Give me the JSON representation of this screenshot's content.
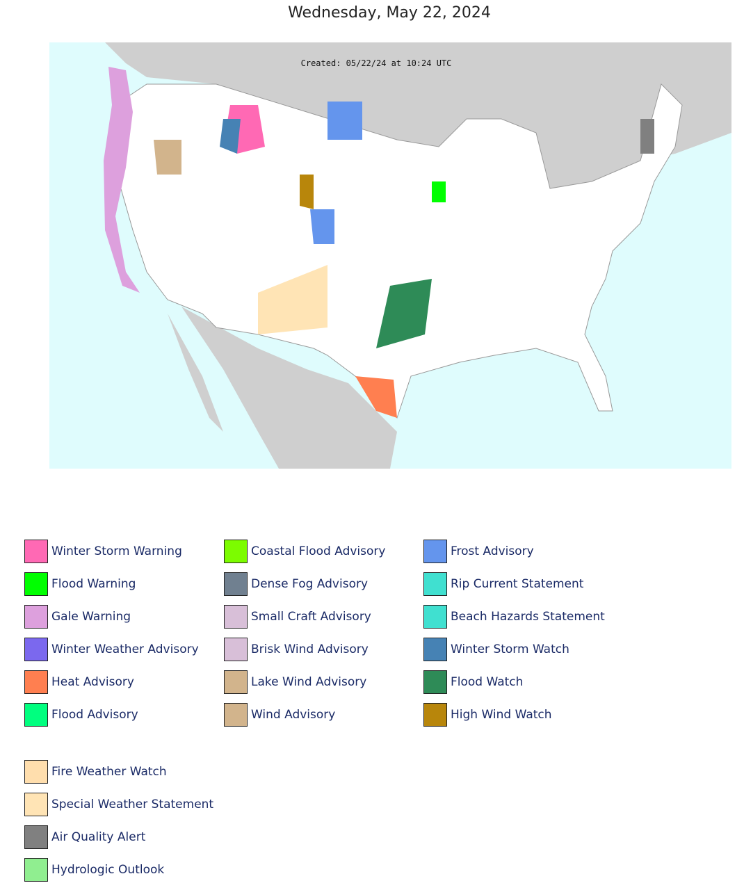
{
  "header": {
    "title": "Wednesday, May 22, 2024"
  },
  "map": {
    "created": "Created: 05/22/24 at 10:24 UTC"
  },
  "legend": {
    "columns": [
      [
        {
          "label": "Winter Storm Warning",
          "color": "#ff69b4"
        },
        {
          "label": "Flood Warning",
          "color": "#00ff00"
        },
        {
          "label": "Gale Warning",
          "color": "#dda0dd"
        },
        {
          "label": "Winter Weather Advisory",
          "color": "#7b68ee"
        },
        {
          "label": "Heat Advisory",
          "color": "#ff7f50"
        },
        {
          "label": "Flood Advisory",
          "color": "#00ff7f"
        }
      ],
      [
        {
          "label": "Coastal Flood Advisory",
          "color": "#7cfc00"
        },
        {
          "label": "Dense Fog Advisory",
          "color": "#708090"
        },
        {
          "label": "Small Craft Advisory",
          "color": "#d8bfd8"
        },
        {
          "label": "Brisk Wind Advisory",
          "color": "#d8bfd8"
        },
        {
          "label": "Lake Wind Advisory",
          "color": "#d2b48c"
        },
        {
          "label": "Wind Advisory",
          "color": "#d2b48c"
        }
      ],
      [
        {
          "label": "Frost Advisory",
          "color": "#6495ed"
        },
        {
          "label": "Rip Current Statement",
          "color": "#40e0d0"
        },
        {
          "label": "Beach Hazards Statement",
          "color": "#40e0d0"
        },
        {
          "label": "Winter Storm Watch",
          "color": "#4682b4"
        },
        {
          "label": "Flood Watch",
          "color": "#2e8b57"
        },
        {
          "label": "High Wind Watch",
          "color": "#b8860b"
        }
      ]
    ],
    "extra": [
      {
        "label": "Fire Weather Watch",
        "color": "#ffdead"
      },
      {
        "label": "Special Weather Statement",
        "color": "#ffe4b5"
      },
      {
        "label": "Air Quality Alert",
        "color": "#808080"
      },
      {
        "label": "Hydrologic Outlook",
        "color": "#90ee90"
      }
    ]
  }
}
